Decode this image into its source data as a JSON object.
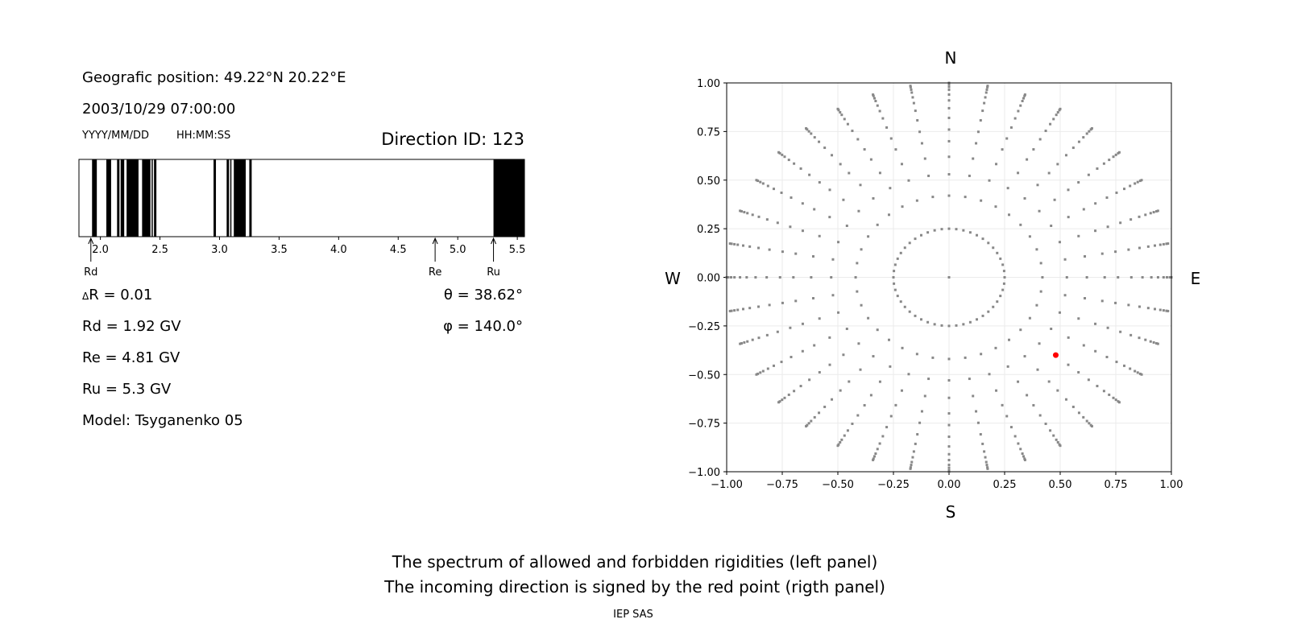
{
  "left_panel": {
    "geo_position": "Geografic position: 49.22°N 20.22°E",
    "datetime": "2003/10/29 07:00:00",
    "date_format": "YYYY/MM/DD",
    "time_format": "HH:MM:SS",
    "direction_id": "Direction ID: 123",
    "delta_r": "R = 0.01",
    "delta_symbol": "Δ",
    "rd": "Rd = 1.92 GV",
    "re": "Re = 4.81 GV",
    "ru": "Ru = 5.3 GV",
    "model": "Model: Tsyganenko 05",
    "theta": "θ = 38.62°",
    "phi": "φ = 140.0°"
  },
  "footer": {
    "line1": "The spectrum of allowed and forbidden rigidities (left panel)",
    "line2": "The incoming direction is signed by the red point (rigth panel)",
    "credit": "IEP SAS"
  },
  "chart_data": [
    {
      "type": "bar",
      "subtype": "rigidity-spectrum",
      "xlim": [
        1.82,
        5.56
      ],
      "xticks": [
        "2.0",
        "2.5",
        "3.0",
        "3.5",
        "4.0",
        "4.5",
        "5.0",
        "5.5"
      ],
      "xtick_values": [
        2.0,
        2.5,
        3.0,
        3.5,
        4.0,
        4.5,
        5.0,
        5.5
      ],
      "forbidden_bands": [
        [
          1.93,
          1.97
        ],
        [
          2.05,
          2.09
        ],
        [
          2.14,
          2.16
        ],
        [
          2.17,
          2.2
        ],
        [
          2.22,
          2.32
        ],
        [
          2.35,
          2.42
        ],
        [
          2.43,
          2.44
        ],
        [
          2.45,
          2.47
        ],
        [
          2.95,
          2.97
        ],
        [
          3.06,
          3.08
        ],
        [
          3.09,
          3.1
        ],
        [
          3.12,
          3.22
        ],
        [
          3.25,
          3.27
        ],
        [
          5.3,
          5.56
        ]
      ],
      "markers": [
        {
          "label": "Rd",
          "value": 1.92
        },
        {
          "label": "Re",
          "value": 4.81
        },
        {
          "label": "Ru",
          "value": 5.3
        }
      ],
      "colors": {
        "forbidden": "#000000",
        "allowed": "#ffffff"
      }
    },
    {
      "type": "scatter",
      "subtype": "sky-map",
      "xlim": [
        -1.0,
        1.0
      ],
      "ylim": [
        -1.0,
        1.0
      ],
      "ticks": [
        "−1.00",
        "−0.75",
        "−0.50",
        "−0.25",
        "0.00",
        "0.25",
        "0.50",
        "0.75",
        "1.00"
      ],
      "tick_values": [
        -1,
        -0.75,
        -0.5,
        -0.25,
        0,
        0.25,
        0.5,
        0.75,
        1
      ],
      "grid": true,
      "compass": {
        "n": "N",
        "s": "S",
        "e": "E",
        "w": "W"
      },
      "grid_points": {
        "azimuth_step_deg": 10,
        "inner_ring_radius": 0.25,
        "inner_ring_count": 48,
        "spoke_radii": [
          0.42,
          0.53,
          0.62,
          0.7,
          0.76,
          0.82,
          0.87,
          0.91,
          0.94,
          0.965,
          0.98,
          0.993,
          1.0
        ],
        "color": "#888888"
      },
      "highlight_point": {
        "x": 0.48,
        "y": -0.4,
        "color": "#ff0000"
      }
    }
  ]
}
